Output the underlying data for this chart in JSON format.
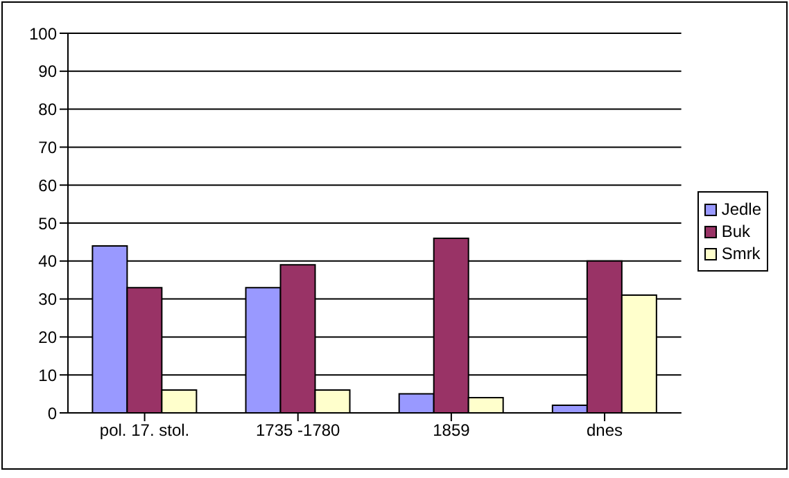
{
  "chart_data": {
    "type": "bar",
    "categories": [
      "pol. 17. stol.",
      "1735 -1780",
      "1859",
      "dnes"
    ],
    "series": [
      {
        "name": "Jedle",
        "color": "#9999ff",
        "values": [
          44,
          33,
          5,
          2
        ]
      },
      {
        "name": "Buk",
        "color": "#993366",
        "values": [
          33,
          39,
          46,
          40
        ]
      },
      {
        "name": "Smrk",
        "color": "#ffffcc",
        "values": [
          6,
          6,
          4,
          31
        ]
      }
    ],
    "ylim": [
      0,
      100
    ],
    "yticks": [
      0,
      10,
      20,
      30,
      40,
      50,
      60,
      70,
      80,
      90,
      100
    ],
    "grid": "y",
    "legend": "right"
  }
}
